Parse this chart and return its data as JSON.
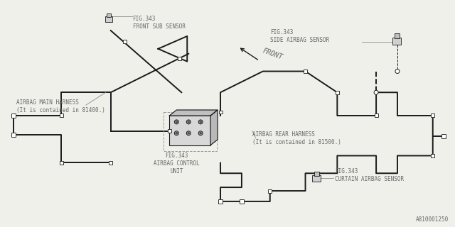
{
  "bg_color": "#f0f0eb",
  "line_color": "#1a1a1a",
  "text_color": "#666666",
  "label_line_color": "#888888",
  "part_number": "A810001250",
  "lw_main": 1.4,
  "lw_label": 0.6,
  "figsize": [
    6.4,
    3.2
  ],
  "dpi": 100,
  "labels": {
    "front_sub_sensor": "FIG.343\nFRONT SUB SENSOR",
    "side_airbag_sensor": "FIG.343\nSIDE AIRBAG SENSOR",
    "airbag_main_harness": "AIRBAG MAIN HARNESS\n(It is contained in 81400.)",
    "airbag_rear_harness": "AIRBAG REAR HARNESS\n(It is contained in 81500.)",
    "airbag_control_unit": "FIG.343\nAIRBAG CONTROL\nUNIT",
    "curtain_airbag_sensor": "FIG.343\nCURTAIN AIRBAG SENSOR",
    "front": "FRONT"
  }
}
